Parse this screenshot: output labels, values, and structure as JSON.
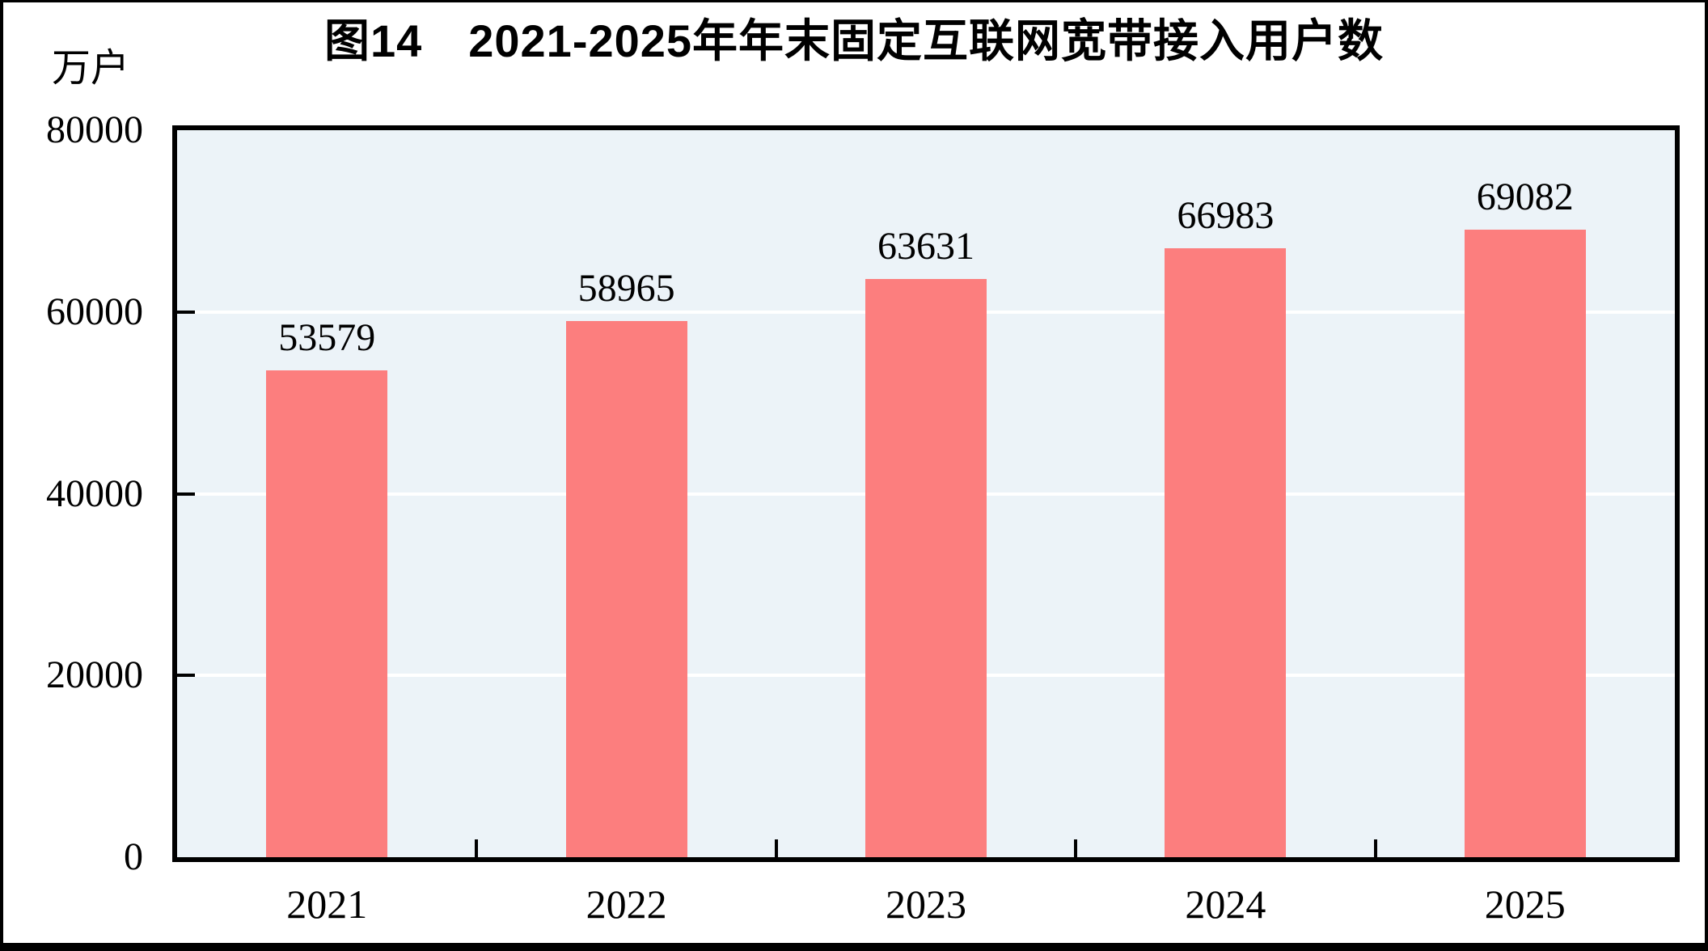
{
  "chart_data": {
    "type": "bar",
    "title": "图14　2021-2025年年末固定互联网宽带接入用户数",
    "unit_label": "万户",
    "categories": [
      "2021",
      "2022",
      "2023",
      "2024",
      "2025"
    ],
    "values": [
      53579,
      58965,
      63631,
      66983,
      69082
    ],
    "bar_value_labels": [
      "53579",
      "58965",
      "63631",
      "66983",
      "69082"
    ],
    "xlabel": "",
    "ylabel": "万户",
    "ylim": [
      0,
      80000
    ],
    "yticks": [
      0,
      20000,
      40000,
      60000,
      80000
    ],
    "ytick_labels": [
      "0",
      "20000",
      "40000",
      "60000",
      "80000"
    ],
    "grid": "horizontal-white-lines-at-20000-intervals",
    "legend_position": "none",
    "colors": {
      "bar": "#FC7E7E",
      "plot_background": "#ECF3F8",
      "gridline": "#FFFFFF",
      "axis_border": "#000000",
      "text": "#000000",
      "page_frame": "#000000"
    }
  }
}
